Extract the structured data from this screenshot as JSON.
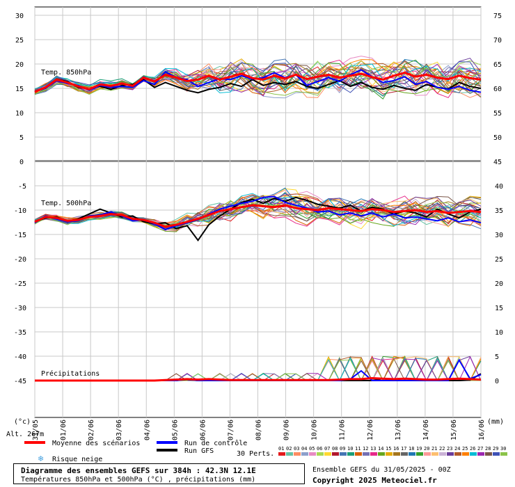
{
  "chart_data": {
    "type": "line",
    "x_labels": [
      "31/05",
      "01/06",
      "02/06",
      "03/06",
      "04/06",
      "05/06",
      "06/06",
      "07/06",
      "08/06",
      "09/06",
      "10/06",
      "11/06",
      "12/06",
      "13/06",
      "14/06",
      "15/06",
      "16/06"
    ],
    "upper_left_ticks": [
      "30",
      "25",
      "20",
      "15",
      "10",
      "5",
      "0"
    ],
    "upper_right_ticks": [
      "75",
      "70",
      "65",
      "60",
      "55",
      "50",
      "45"
    ],
    "lower_left_ticks": [
      "-5",
      "-10",
      "-15",
      "-20",
      "-25",
      "-30",
      "-35",
      "-40",
      "-45"
    ],
    "lower_right_ticks": [
      "40",
      "35",
      "30",
      "25",
      "20",
      "15",
      "10",
      "5",
      "0"
    ],
    "left_unit": "(°c)",
    "right_unit": "(mm)",
    "labels": {
      "t850": "Temp. 850hPa",
      "t500": "Temp. 500hPa",
      "precip": "Précipitations"
    },
    "t850_mean": [
      14.3,
      15.2,
      16.8,
      16.2,
      15.4,
      14.8,
      15.8,
      15.5,
      16.0,
      15.5,
      17.2,
      16.4,
      17.8,
      17.2,
      16.5,
      16.8,
      17.6,
      16.8,
      17.4,
      18.0,
      17.1,
      16.8,
      17.6,
      17.0,
      17.8,
      16.9,
      17.4,
      17.8,
      17.2,
      17.6,
      18.0,
      17.3,
      16.8,
      17.6,
      18.2,
      17.4,
      17.8,
      17.2,
      16.9,
      17.6,
      17.1,
      16.8
    ],
    "t850_control": [
      14.3,
      15.0,
      16.6,
      16.0,
      15.6,
      14.6,
      15.6,
      15.2,
      15.4,
      15.2,
      16.6,
      15.8,
      18.4,
      17.2,
      16.8,
      15.4,
      16.2,
      17.0,
      16.8,
      17.6,
      16.9,
      17.2,
      18.2,
      17.2,
      17.8,
      15.6,
      16.4,
      17.2,
      16.4,
      17.8,
      18.8,
      17.4,
      16.2,
      16.6,
      17.4,
      15.8,
      16.4,
      15.2,
      14.8,
      15.4,
      14.6,
      14.2
    ],
    "t850_gfs": [
      14.3,
      15.2,
      16.9,
      16.4,
      15.2,
      14.9,
      15.4,
      14.8,
      15.6,
      15.8,
      16.8,
      15.2,
      16.2,
      15.4,
      14.6,
      14.1,
      14.8,
      15.2,
      16.0,
      15.4,
      16.8,
      15.6,
      16.2,
      15.8,
      16.4,
      15.4,
      15.0,
      15.8,
      16.6,
      15.4,
      16.2,
      15.2,
      14.8,
      15.6,
      15.0,
      14.6,
      15.8,
      15.2,
      14.9,
      16.2,
      15.4,
      15.0
    ],
    "t500_mean": [
      -12.4,
      -11.4,
      -11.6,
      -12.2,
      -12.0,
      -11.4,
      -11.2,
      -10.8,
      -11.0,
      -11.8,
      -12.0,
      -12.6,
      -13.4,
      -13.0,
      -12.4,
      -11.8,
      -11.0,
      -10.2,
      -9.8,
      -9.4,
      -9.0,
      -9.2,
      -9.4,
      -9.0,
      -9.6,
      -9.8,
      -10.0,
      -9.6,
      -9.8,
      -10.0,
      -10.2,
      -9.8,
      -10.0,
      -10.4,
      -10.2,
      -10.0,
      -10.4,
      -10.2,
      -10.6,
      -10.4,
      -10.2,
      -10.4
    ],
    "t500_control": [
      -12.6,
      -11.2,
      -11.8,
      -12.4,
      -12.2,
      -11.2,
      -11.0,
      -10.4,
      -11.2,
      -12.2,
      -12.0,
      -12.8,
      -14.0,
      -13.2,
      -12.6,
      -12.0,
      -10.8,
      -9.8,
      -9.2,
      -8.6,
      -8.2,
      -7.4,
      -7.2,
      -8.4,
      -9.0,
      -9.6,
      -10.4,
      -10.2,
      -11.0,
      -10.6,
      -11.2,
      -10.6,
      -11.4,
      -10.8,
      -11.6,
      -11.4,
      -11.8,
      -12.2,
      -11.6,
      -12.4,
      -12.0,
      -12.6
    ],
    "t500_gfs": [
      -12.4,
      -11.6,
      -11.4,
      -12.4,
      -11.8,
      -10.8,
      -9.8,
      -10.6,
      -11.4,
      -11.2,
      -12.4,
      -12.8,
      -12.6,
      -13.8,
      -13.2,
      -16.2,
      -13.0,
      -11.2,
      -9.8,
      -8.4,
      -7.8,
      -8.6,
      -7.6,
      -8.2,
      -7.4,
      -8.0,
      -8.8,
      -9.2,
      -9.6,
      -9.0,
      -10.2,
      -9.4,
      -9.8,
      -10.8,
      -10.2,
      -10.6,
      -11.4,
      -9.8,
      -10.8,
      -11.6,
      -10.4,
      -9.8
    ],
    "precip_mean": [
      0,
      0,
      0,
      0,
      0,
      0,
      0,
      0,
      0,
      0,
      0,
      0,
      0.1,
      0.2,
      0.3,
      0.2,
      0.3,
      0.2,
      0.1,
      0.1,
      0.1,
      0.1,
      0.1,
      0.1,
      0.1,
      0.1,
      0.1,
      0.1,
      0.2,
      0.3,
      0.3,
      0.5,
      0.4,
      0.3,
      0.4,
      0.3,
      0.2,
      0.2,
      0.3,
      0.4,
      0.3,
      0.2
    ],
    "precip_control": [
      0,
      0,
      0,
      0,
      0,
      0,
      0,
      0,
      0,
      0,
      0,
      0,
      0,
      0,
      0.3,
      0,
      0,
      0,
      0,
      0,
      0,
      0,
      0,
      0,
      0,
      0,
      0,
      0,
      0,
      0.3,
      2.0,
      0,
      0,
      0,
      0,
      0,
      0,
      0,
      0,
      4.2,
      0.4,
      1.2
    ],
    "precip_gfs": [
      0,
      0,
      0,
      0,
      0,
      0,
      0,
      0,
      0,
      0,
      0,
      0,
      0,
      0,
      0.2,
      0,
      0.2,
      0,
      0,
      0,
      0,
      0,
      0,
      0,
      0,
      0,
      0,
      0,
      0,
      0,
      0,
      0,
      0.4,
      0,
      0,
      0,
      0,
      0.2,
      0,
      0,
      0.1,
      1.4
    ],
    "ensemble_colors": [
      "#e31a1c",
      "#66c2a5",
      "#fc8d62",
      "#8da0cb",
      "#e78ac3",
      "#a6d854",
      "#ffd92f",
      "#b2182b",
      "#4575b4",
      "#1b9e77",
      "#d95f02",
      "#7570b3",
      "#e7298a",
      "#66a61e",
      "#e6ab02",
      "#a6761d",
      "#666666",
      "#1f78b4",
      "#33a02c",
      "#fb9a99",
      "#fdbf6f",
      "#cab2d6",
      "#6a3d9a",
      "#b15928",
      "#ff7f00",
      "#00bcd4",
      "#9c27b0",
      "#795548",
      "#3f51b5",
      "#8bc34a"
    ],
    "legend_colors": {
      "mean": "#ff0000",
      "control": "#0000ff",
      "gfs": "#000000"
    }
  },
  "legend": {
    "alt": "Alt. 267m",
    "mean": "Moyenne des scénarios",
    "control": "Run de contrôle",
    "gfs": "Run GFS",
    "snow": "Risque neige",
    "perts": "30 Perts.",
    "pert_numbers": [
      "01",
      "02",
      "03",
      "04",
      "05",
      "06",
      "07",
      "08",
      "09",
      "10",
      "11",
      "12",
      "13",
      "14",
      "15",
      "16",
      "17",
      "18",
      "19",
      "20",
      "21",
      "22",
      "23",
      "24",
      "25",
      "26",
      "27",
      "28",
      "29",
      "30"
    ]
  },
  "title_box": {
    "line1": "Diagramme des ensembles GEFS sur 384h : 42.3N 12.1E",
    "line2": "Températures 850hPa et 500hPa (°C) , précipitations (mm)"
  },
  "footer": {
    "run": "Ensemble GEFS du 31/05/2025 - 00Z",
    "copyright": "Copyright 2025 Meteociel.fr"
  }
}
